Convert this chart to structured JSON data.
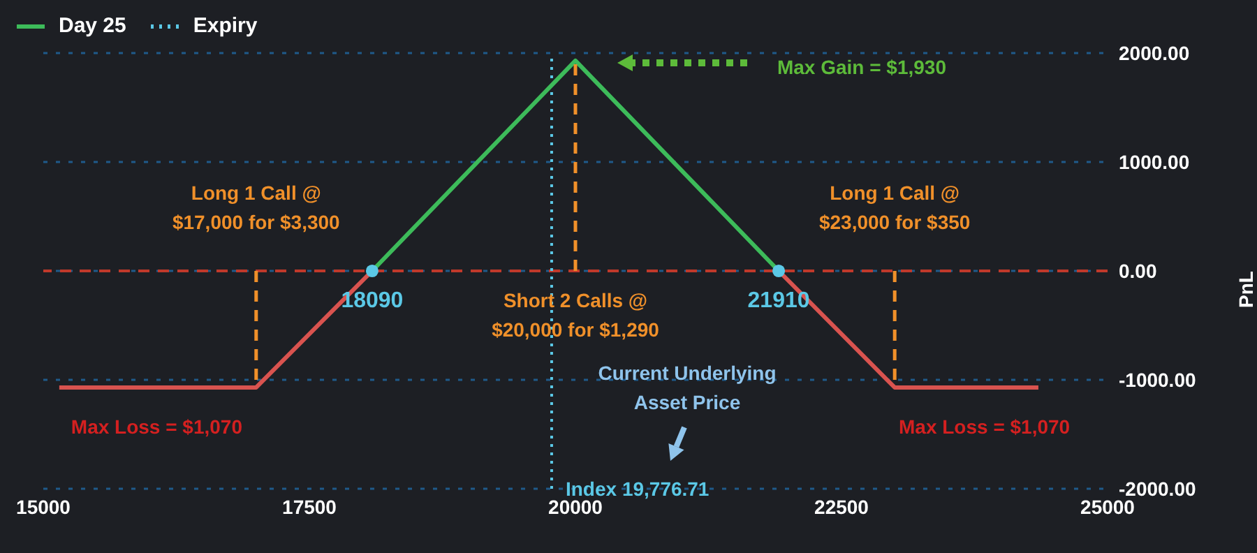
{
  "chart_data": {
    "type": "line",
    "xlim": [
      15000,
      25000
    ],
    "xticks": [
      15000,
      17500,
      20000,
      22500,
      25000
    ],
    "ylim": [
      -2000,
      2000
    ],
    "yticks": [
      {
        "value": -2000,
        "label": "-2000.00"
      },
      {
        "value": -1000,
        "label": "-1000.00"
      },
      {
        "value": 0,
        "label": "0.00"
      },
      {
        "value": 1000,
        "label": "1000.00"
      },
      {
        "value": 2000,
        "label": "2000.00"
      }
    ],
    "ylabel": "PnL",
    "grid": "y",
    "legend": "top left",
    "line_style": "solid",
    "series": [
      {
        "name": "Day 25",
        "color": "#3dbb5a",
        "x": [
          18090,
          20000,
          21910
        ],
        "values": [
          0,
          1930,
          0
        ]
      },
      {
        "color": "#d9534f",
        "x": [
          15150,
          17000,
          18090,
          20000,
          21910,
          23000,
          24350
        ],
        "values": [
          -1070,
          -1070,
          0,
          null,
          0,
          -1070,
          -1070
        ]
      },
      {
        "name": "Expiry",
        "color": "#5bc8e6",
        "line_style": "dotted"
      },
      {
        "color": "#f0902a",
        "line_style": "dashed",
        "x": [
          17000,
          17000
        ],
        "values": [
          0,
          -1000
        ]
      },
      {
        "color": "#f0902a",
        "line_style": "dashed",
        "x": [
          20000,
          20000
        ],
        "values": [
          0,
          1900
        ]
      },
      {
        "color": "#f0902a",
        "line_style": "dashed",
        "x": [
          23000,
          23000
        ],
        "values": [
          0,
          -1000
        ]
      },
      {
        "type": "scatter",
        "marker": "circle",
        "color": "#5bc8e6",
        "x": [
          18090,
          21910
        ],
        "values": [
          0,
          0
        ]
      }
    ],
    "ref_lines": [
      {
        "axis": "y",
        "value": 0,
        "color": "#c0392b",
        "line_style": "dashed"
      },
      {
        "axis": "x",
        "value": 19776.71,
        "label": "Index 19,776.71",
        "color": "#5bc8e6",
        "line_style": "dotted"
      }
    ],
    "annotations": [
      "Max Gain = $1,930",
      {
        "text": "Long 1 Call @\n$17,000 for $3,300",
        "x": 17000,
        "y": 0
      },
      {
        "text": "Long 1 Call @\n$23,000 for $350",
        "x": 23000,
        "y": 0
      },
      {
        "text": "Short 2 Calls @\n$20,000 for $1,290",
        "x": 20000,
        "y": 0
      },
      "Current Underlying\nAsset Price",
      {
        "text": "Max Loss = $1,070",
        "x": 16000,
        "y": -1070
      },
      {
        "text": "Max Loss = $1,070",
        "x": 24000,
        "y": -1070
      },
      {
        "text": "18090",
        "x": 18090,
        "y": 0
      },
      {
        "text": "21910",
        "x": 21910,
        "y": 0
      }
    ]
  }
}
